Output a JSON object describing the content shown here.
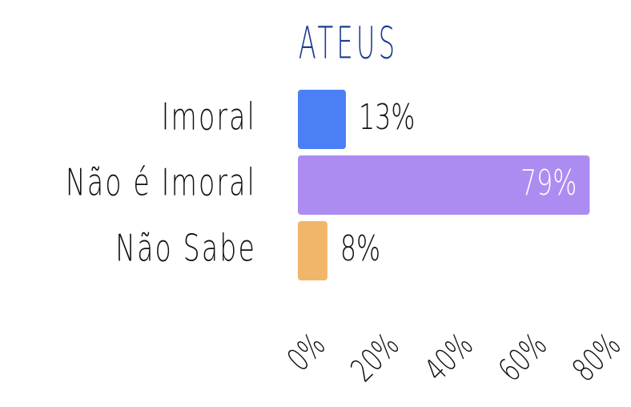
{
  "chart_data": {
    "type": "hbar",
    "title": "ATEUS",
    "categories": [
      "Imoral",
      "Não é Imoral",
      "Não Sabe"
    ],
    "values": [
      13,
      79,
      8
    ],
    "value_labels": [
      "13%",
      "79%",
      "8%"
    ],
    "colors": [
      "#4a7ff5",
      "#ad8cf2",
      "#f2b66a"
    ],
    "xlim": [
      0,
      80
    ],
    "xticks": [
      {
        "value": 0,
        "label": "0%"
      },
      {
        "value": 20,
        "label": "20%"
      },
      {
        "value": 40,
        "label": "40%"
      },
      {
        "value": 60,
        "label": "60%"
      },
      {
        "value": 80,
        "label": "80%"
      }
    ]
  }
}
